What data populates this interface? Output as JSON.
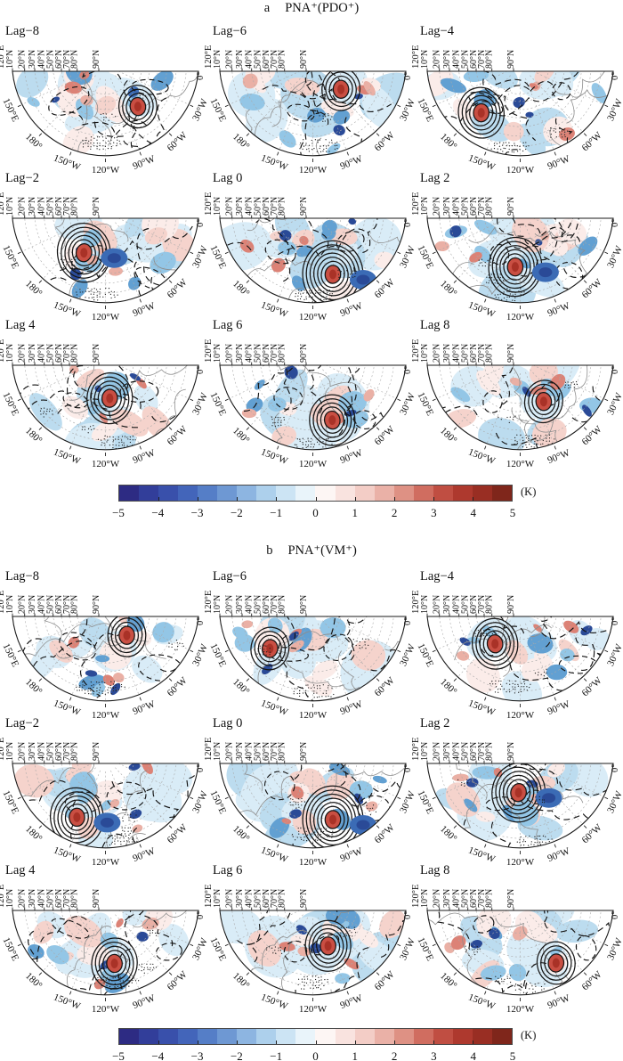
{
  "panels": [
    {
      "letter": "a",
      "title": "PNA⁺(PDO⁺)",
      "lags": [
        "Lag−8",
        "Lag−6",
        "Lag−4",
        "Lag−2",
        "Lag 0",
        "Lag 2",
        "Lag 4",
        "Lag 6",
        "Lag 8"
      ],
      "colorbar_unit": "(K)"
    },
    {
      "letter": "b",
      "title": "PNA⁺(VM⁺)",
      "lags": [
        "Lag−8",
        "Lag−6",
        "Lag−4",
        "Lag−2",
        "Lag 0",
        "Lag 2",
        "Lag 4",
        "Lag 6",
        "Lag 8"
      ],
      "colorbar_unit": "(K)"
    }
  ],
  "map_labels": {
    "latitudes": [
      "10°N",
      "20°N",
      "30°N",
      "40°N",
      "50°N",
      "60°N",
      "70°N",
      "80°N",
      "90°N"
    ],
    "left_meridian": "120°E",
    "right_meridian": "0°",
    "arc_meridians": [
      "150°E",
      "180°",
      "150°W",
      "120°W",
      "90°W",
      "60°W",
      "30°W"
    ]
  },
  "colorbar": {
    "ticks": [
      "−5",
      "−4",
      "−3",
      "−2",
      "−1",
      "0",
      "1",
      "2",
      "3",
      "4",
      "5"
    ],
    "colors": [
      "#2d2b83",
      "#323e9a",
      "#3950ab",
      "#4365ba",
      "#557ec7",
      "#6e98d3",
      "#8db5e1",
      "#add0ec",
      "#cce4f4",
      "#e9f4fa",
      "#fdf6f4",
      "#f9e3df",
      "#f3cdc6",
      "#eab1a7",
      "#de9184",
      "#d06d60",
      "#c04e42",
      "#ae392e",
      "#992e23",
      "#7f261b"
    ]
  },
  "chart_data": [
    {
      "panel": "a",
      "type": "heatmap",
      "subtype": "lagged composite maps, polar fan projection",
      "title": "PNA⁺(PDO⁺)",
      "lags": [
        -8,
        -6,
        -4,
        -2,
        0,
        2,
        4,
        6,
        8
      ],
      "grid": {
        "rows": 3,
        "cols": 3
      },
      "lat_ticks_deg_N": [
        10,
        20,
        30,
        40,
        50,
        60,
        70,
        80,
        90
      ],
      "lon_ticks": [
        "120°E",
        "150°E",
        "180°",
        "150°W",
        "120°W",
        "90°W",
        "60°W",
        "30°W",
        "0°"
      ],
      "shading": "anomaly (K), blue negative / red positive, with black contours and stippling",
      "colorbar": {
        "min": -5,
        "max": 5,
        "tick_step": 1,
        "unit": "K",
        "palette": "blue-white-red"
      }
    },
    {
      "panel": "b",
      "type": "heatmap",
      "subtype": "lagged composite maps, polar fan projection",
      "title": "PNA⁺(VM⁺)",
      "lags": [
        -8,
        -6,
        -4,
        -2,
        0,
        2,
        4,
        6,
        8
      ],
      "grid": {
        "rows": 3,
        "cols": 3
      },
      "lat_ticks_deg_N": [
        10,
        20,
        30,
        40,
        50,
        60,
        70,
        80,
        90
      ],
      "lon_ticks": [
        "120°E",
        "150°E",
        "180°",
        "150°W",
        "120°W",
        "90°W",
        "60°W",
        "30°W",
        "0°"
      ],
      "shading": "anomaly (K), blue negative / red positive, with black contours and stippling",
      "colorbar": {
        "min": -5,
        "max": 5,
        "tick_step": 1,
        "unit": "K",
        "palette": "blue-white-red"
      }
    }
  ]
}
